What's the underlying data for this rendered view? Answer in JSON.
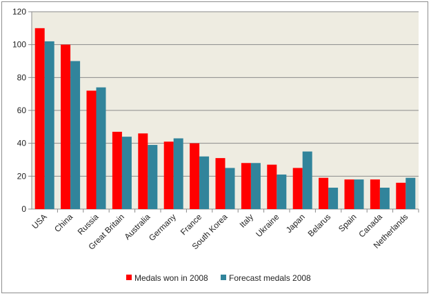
{
  "chart_data": {
    "type": "bar",
    "title": "",
    "xlabel": "",
    "ylabel": "",
    "ylim": [
      0,
      120
    ],
    "yticks": [
      0,
      20,
      40,
      60,
      80,
      100,
      120
    ],
    "grid": true,
    "legend_position": "bottom",
    "categories": [
      "USA",
      "China",
      "Russia",
      "Great Britain",
      "Australia",
      "Germany",
      "France",
      "South Korea",
      "Italy",
      "Ukraine",
      "Japan",
      "Belarus",
      "Spain",
      "Canada",
      "Netherlands"
    ],
    "series": [
      {
        "name": "Medals won in 2008",
        "color": "#ff0000",
        "values": [
          110,
          100,
          72,
          47,
          46,
          41,
          40,
          31,
          28,
          27,
          25,
          19,
          18,
          18,
          16
        ]
      },
      {
        "name": "Forecast medals 2008",
        "color": "#31849b",
        "values": [
          102,
          90,
          74,
          44,
          39,
          43,
          32,
          25,
          28,
          21,
          35,
          13,
          18,
          13,
          19
        ]
      }
    ],
    "plot_background": "#eeece1"
  }
}
